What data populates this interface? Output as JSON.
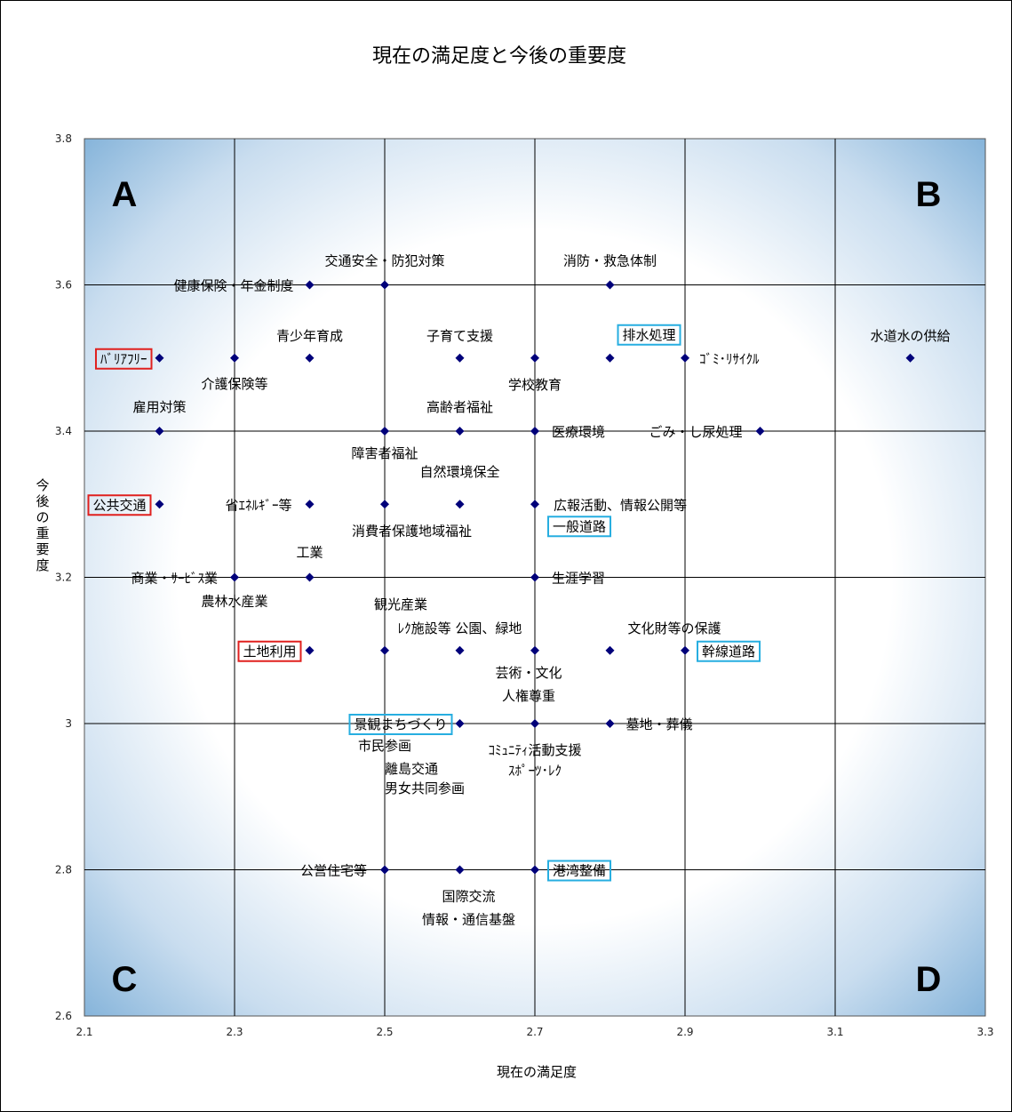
{
  "chart_data": {
    "type": "scatter",
    "title": "現在の満足度と今後の重要度",
    "xlabel": "現在の満足度",
    "ylabel": "今後の重要度",
    "xlim": [
      2.1,
      3.3
    ],
    "ylim": [
      2.6,
      3.8
    ],
    "xticks": [
      "2.1",
      "2.3",
      "2.5",
      "2.7",
      "2.9",
      "3.1",
      "3.3"
    ],
    "yticks": [
      "3.8",
      "3.6",
      "3.4",
      "3.2",
      "3",
      "2.8",
      "2.6"
    ],
    "grid": true,
    "quadrants": [
      "A",
      "B",
      "C",
      "D"
    ],
    "colors": {
      "marker": "#00007a",
      "red_box": "#e0201e",
      "blue_box": "#27aee0",
      "background_edge": "#7fb0d8"
    },
    "points": [
      {
        "x": 2.4,
        "y": 3.6
      },
      {
        "x": 2.5,
        "y": 3.6
      },
      {
        "x": 2.8,
        "y": 3.6
      },
      {
        "x": 2.2,
        "y": 3.5
      },
      {
        "x": 2.3,
        "y": 3.5
      },
      {
        "x": 2.4,
        "y": 3.5
      },
      {
        "x": 2.6,
        "y": 3.5
      },
      {
        "x": 2.7,
        "y": 3.5
      },
      {
        "x": 2.8,
        "y": 3.5
      },
      {
        "x": 2.9,
        "y": 3.5
      },
      {
        "x": 3.2,
        "y": 3.5
      },
      {
        "x": 2.2,
        "y": 3.4
      },
      {
        "x": 2.5,
        "y": 3.4
      },
      {
        "x": 2.6,
        "y": 3.4
      },
      {
        "x": 2.7,
        "y": 3.4
      },
      {
        "x": 3.0,
        "y": 3.4
      },
      {
        "x": 2.2,
        "y": 3.3
      },
      {
        "x": 2.4,
        "y": 3.3
      },
      {
        "x": 2.5,
        "y": 3.3
      },
      {
        "x": 2.6,
        "y": 3.3
      },
      {
        "x": 2.7,
        "y": 3.3
      },
      {
        "x": 2.3,
        "y": 3.2
      },
      {
        "x": 2.4,
        "y": 3.2
      },
      {
        "x": 2.7,
        "y": 3.2
      },
      {
        "x": 2.4,
        "y": 3.1
      },
      {
        "x": 2.5,
        "y": 3.1
      },
      {
        "x": 2.6,
        "y": 3.1
      },
      {
        "x": 2.7,
        "y": 3.1
      },
      {
        "x": 2.8,
        "y": 3.1
      },
      {
        "x": 2.9,
        "y": 3.1
      },
      {
        "x": 2.6,
        "y": 3.0
      },
      {
        "x": 2.7,
        "y": 3.0
      },
      {
        "x": 2.8,
        "y": 3.0
      },
      {
        "x": 2.5,
        "y": 2.8
      },
      {
        "x": 2.6,
        "y": 2.8
      },
      {
        "x": 2.7,
        "y": 2.8
      }
    ],
    "labels": [
      {
        "text": "交通安全・防犯対策",
        "x": 2.5,
        "y": 3.6,
        "box": null
      },
      {
        "text": "消防・救急体制",
        "x": 2.8,
        "y": 3.6,
        "box": null
      },
      {
        "text": "健康保険・年金制度",
        "x": 2.4,
        "y": 3.6,
        "box": null
      },
      {
        "text": "青少年育成",
        "x": 2.4,
        "y": 3.5,
        "box": null
      },
      {
        "text": "子育て支援",
        "x": 2.6,
        "y": 3.5,
        "box": null
      },
      {
        "text": "排水処理",
        "x": 2.8,
        "y": 3.5,
        "box": "blue"
      },
      {
        "text": "水道水の供給",
        "x": 3.2,
        "y": 3.5,
        "box": null
      },
      {
        "text": "ﾊﾞﾘｱﾌﾘｰ",
        "x": 2.2,
        "y": 3.5,
        "box": "red"
      },
      {
        "text": "ｺﾞﾐ･ﾘｻｲｸﾙ",
        "x": 2.9,
        "y": 3.5,
        "box": null
      },
      {
        "text": "介護保険等",
        "x": 2.3,
        "y": 3.5,
        "box": null
      },
      {
        "text": "学校教育",
        "x": 2.7,
        "y": 3.5,
        "box": null
      },
      {
        "text": "雇用対策",
        "x": 2.2,
        "y": 3.4,
        "box": null
      },
      {
        "text": "ごみ・し尿処理",
        "x": 3.0,
        "y": 3.4,
        "box": null
      },
      {
        "text": "障害者福祉",
        "x": 2.5,
        "y": 3.4,
        "box": null
      },
      {
        "text": "医療環境",
        "x": 2.7,
        "y": 3.4,
        "box": null
      },
      {
        "text": "高齢者福祉",
        "x": 2.6,
        "y": 3.4,
        "box": null
      },
      {
        "text": "自然環境保全",
        "x": 2.6,
        "y": 3.4,
        "box": null
      },
      {
        "text": "公共交通",
        "x": 2.2,
        "y": 3.3,
        "box": "red"
      },
      {
        "text": "省ｴﾈﾙｷﾞｰ等",
        "x": 2.4,
        "y": 3.3,
        "box": null
      },
      {
        "text": "広報活動、情報公開等",
        "x": 2.7,
        "y": 3.3,
        "box": null
      },
      {
        "text": "消費者保護地域福祉",
        "x": 2.5,
        "y": 3.3,
        "box": null
      },
      {
        "text": "一般道路",
        "x": 2.7,
        "y": 3.3,
        "box": "blue"
      },
      {
        "text": "工業",
        "x": 2.4,
        "y": 3.2,
        "box": null
      },
      {
        "text": "商業・ｻｰﾋﾞｽ業",
        "x": 2.3,
        "y": 3.2,
        "box": null
      },
      {
        "text": "生涯学習",
        "x": 2.7,
        "y": 3.2,
        "box": null
      },
      {
        "text": "農林水産業",
        "x": 2.3,
        "y": 3.2,
        "box": null
      },
      {
        "text": "観光産業",
        "x": 2.5,
        "y": 3.1,
        "box": null
      },
      {
        "text": "ﾚｸ施設等 公園、緑地",
        "x": 2.6,
        "y": 3.1,
        "box": null
      },
      {
        "text": "文化財等の保護",
        "x": 2.8,
        "y": 3.1,
        "box": null
      },
      {
        "text": "土地利用",
        "x": 2.4,
        "y": 3.1,
        "box": "red"
      },
      {
        "text": "幹線道路",
        "x": 2.9,
        "y": 3.1,
        "box": "blue"
      },
      {
        "text": "芸術・文化",
        "x": 2.7,
        "y": 3.1,
        "box": null
      },
      {
        "text": "人権尊重",
        "x": 2.7,
        "y": 3.1,
        "box": null
      },
      {
        "text": "景観まちづくり",
        "x": 2.6,
        "y": 3.0,
        "box": "blue"
      },
      {
        "text": "墓地・葬儀",
        "x": 2.8,
        "y": 3.0,
        "box": null
      },
      {
        "text": "市民参画",
        "x": 2.5,
        "y": 3.0,
        "box": null
      },
      {
        "text": "ｺﾐｭﾆﾃｨ活動支援",
        "x": 2.7,
        "y": 3.0,
        "box": null
      },
      {
        "text": "離島交通",
        "x": 2.5,
        "y": 3.0,
        "box": null
      },
      {
        "text": "ｽﾎﾟｰﾂ･ﾚｸ",
        "x": 2.7,
        "y": 3.0,
        "box": null
      },
      {
        "text": "男女共同参画",
        "x": 2.5,
        "y": 3.0,
        "box": null
      },
      {
        "text": "公営住宅等",
        "x": 2.5,
        "y": 2.8,
        "box": null
      },
      {
        "text": "港湾整備",
        "x": 2.7,
        "y": 2.8,
        "box": "blue"
      },
      {
        "text": "国際交流",
        "x": 2.6,
        "y": 2.8,
        "box": null
      },
      {
        "text": "情報・通信基盤",
        "x": 2.6,
        "y": 2.8,
        "box": null
      }
    ]
  }
}
